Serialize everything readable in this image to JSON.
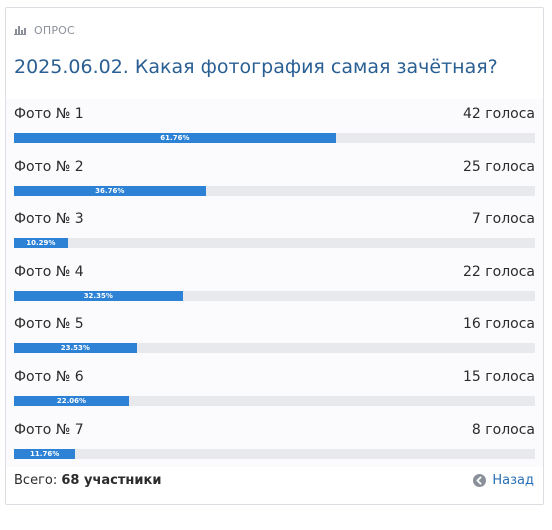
{
  "header": {
    "label": "ОПРОС",
    "icon": "poll-chart-icon"
  },
  "poll": {
    "title": "2025.06.02. Какая фотография самая зачётная?",
    "options": [
      {
        "name": "Фото № 1",
        "votes": "42 голоса",
        "percent_label": "61.76%",
        "fraction": 0.6176
      },
      {
        "name": "Фото № 2",
        "votes": "25 голоса",
        "percent_label": "36.76%",
        "fraction": 0.3676
      },
      {
        "name": "Фото № 3",
        "votes": "7 голоса",
        "percent_label": "10.29%",
        "fraction": 0.1029
      },
      {
        "name": "Фото № 4",
        "votes": "22 голоса",
        "percent_label": "32.35%",
        "fraction": 0.3235
      },
      {
        "name": "Фото № 5",
        "votes": "16 голоса",
        "percent_label": "23.53%",
        "fraction": 0.2353
      },
      {
        "name": "Фото № 6",
        "votes": "15 голоса",
        "percent_label": "22.06%",
        "fraction": 0.2206
      },
      {
        "name": "Фото № 7",
        "votes": "8 голоса",
        "percent_label": "11.76%",
        "fraction": 0.1176
      }
    ]
  },
  "footer": {
    "total_prefix": "Всего:",
    "total_value": "68 участники",
    "back_label": "Назад",
    "back_icon": "arrow-left-circle-icon"
  },
  "colors": {
    "title": "#2a5f93",
    "bar_fill": "#2d82d6",
    "bar_track": "#e8e9ed",
    "link": "#2a6fb5"
  }
}
